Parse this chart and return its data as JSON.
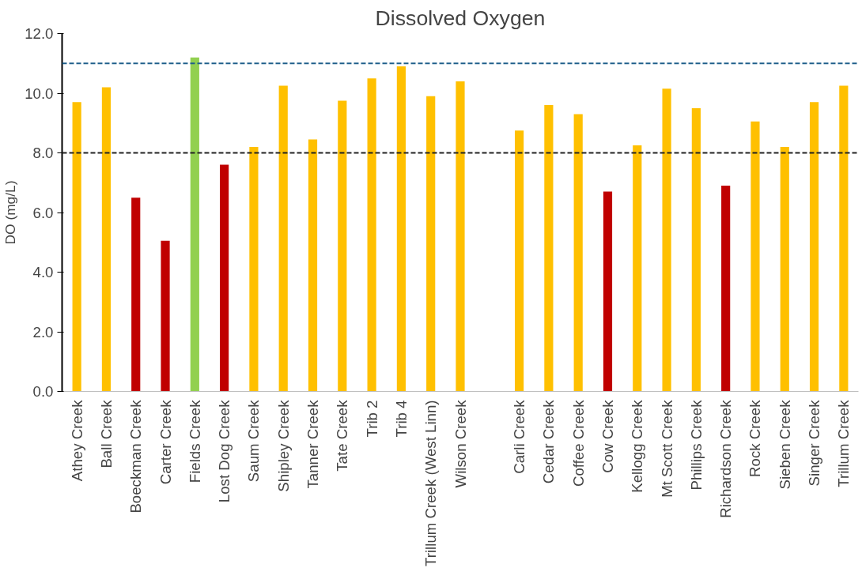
{
  "chart_data": {
    "type": "bar",
    "title": "Dissolved Oxygen",
    "ylabel": "DO (mg/L)",
    "categories": [
      "Athey Creek",
      "Ball Creek",
      "Boeckman Creek",
      "Carter Creek",
      "Fields Creek",
      "Lost Dog Creek",
      "Saum Creek",
      "Shipley Creek",
      "Tanner Creek",
      "Tate Creek",
      "Trib 2",
      "Trib 4",
      "Trillum Creek (West Linn)",
      "Wilson Creek",
      null,
      "Carli Creek",
      "Cedar Creek",
      "Coffee Creek",
      "Cow Creek",
      "Kellogg Creek",
      "Mt Scott Creek",
      "Phillips Creek",
      "Richardson Creek",
      "Rock Creek",
      "Sieben Creek",
      "Singer Creek",
      "Trillum Creek"
    ],
    "values": [
      9.7,
      10.2,
      6.5,
      5.05,
      11.2,
      7.6,
      8.2,
      10.25,
      8.45,
      9.75,
      10.5,
      10.9,
      9.9,
      10.4,
      null,
      8.75,
      9.6,
      9.3,
      6.7,
      8.25,
      10.15,
      9.5,
      6.9,
      9.05,
      8.2,
      9.7,
      10.25
    ],
    "colors": [
      "#ffc000",
      "#ffc000",
      "#c00000",
      "#c00000",
      "#92d050",
      "#c00000",
      "#ffc000",
      "#ffc000",
      "#ffc000",
      "#ffc000",
      "#ffc000",
      "#ffc000",
      "#ffc000",
      "#ffc000",
      "#ffc000",
      "#ffc000",
      "#ffc000",
      "#ffc000",
      "#c00000",
      "#ffc000",
      "#ffc000",
      "#ffc000",
      "#c00000",
      "#ffc000",
      "#ffc000",
      "#ffc000",
      "#ffc000"
    ],
    "ylim": [
      0,
      12
    ],
    "yticks": [
      {
        "value": 0,
        "label": "0.0"
      },
      {
        "value": 2,
        "label": "2.0"
      },
      {
        "value": 4,
        "label": "4.0"
      },
      {
        "value": 6,
        "label": "6.0"
      },
      {
        "value": 8,
        "label": "8.0"
      },
      {
        "value": 10,
        "label": "10.0"
      },
      {
        "value": 12,
        "label": "12.0"
      }
    ],
    "ref_lines": [
      {
        "axis": "y",
        "value": 11,
        "label": null,
        "color": "#1f5f8b",
        "line_style": "dashed"
      },
      {
        "axis": "y",
        "value": 8,
        "label": null,
        "color": "#222222",
        "line_style": "dashed"
      }
    ],
    "grid": false
  }
}
